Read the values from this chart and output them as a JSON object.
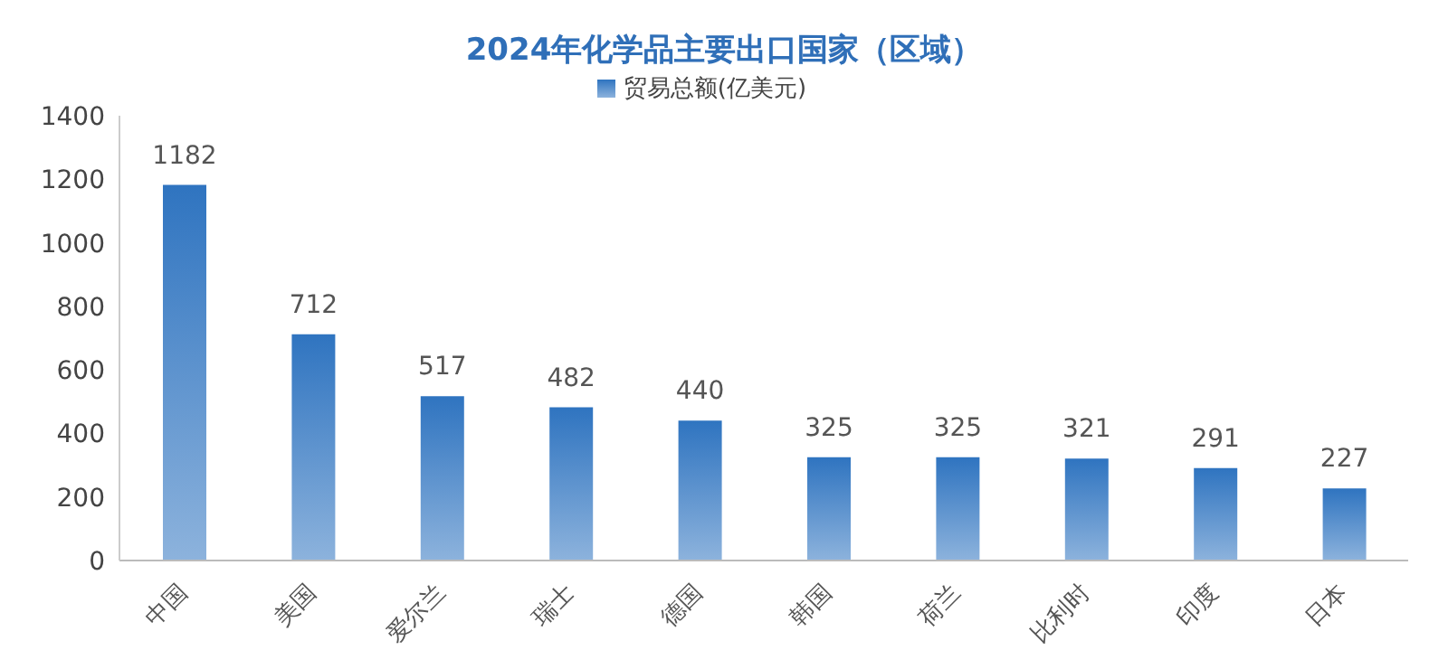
{
  "chart_data": {
    "type": "bar",
    "title": "2024年化学品主要出口国家（区域）",
    "categories": [
      "中国",
      "美国",
      "爱尔兰",
      "瑞士",
      "德国",
      "韩国",
      "荷兰",
      "比利时",
      "印度",
      "日本"
    ],
    "series": [
      {
        "name": "贸易总额(亿美元)",
        "color": "#2f74c0",
        "values": [
          1182,
          712,
          517,
          482,
          440,
          325,
          325,
          321,
          291,
          227
        ]
      }
    ],
    "ylim": [
      0,
      1400
    ],
    "yticks": [
      0,
      200,
      400,
      600,
      800,
      1000,
      1200,
      1400
    ],
    "grid": false,
    "legend": "top",
    "data_labels": true
  }
}
